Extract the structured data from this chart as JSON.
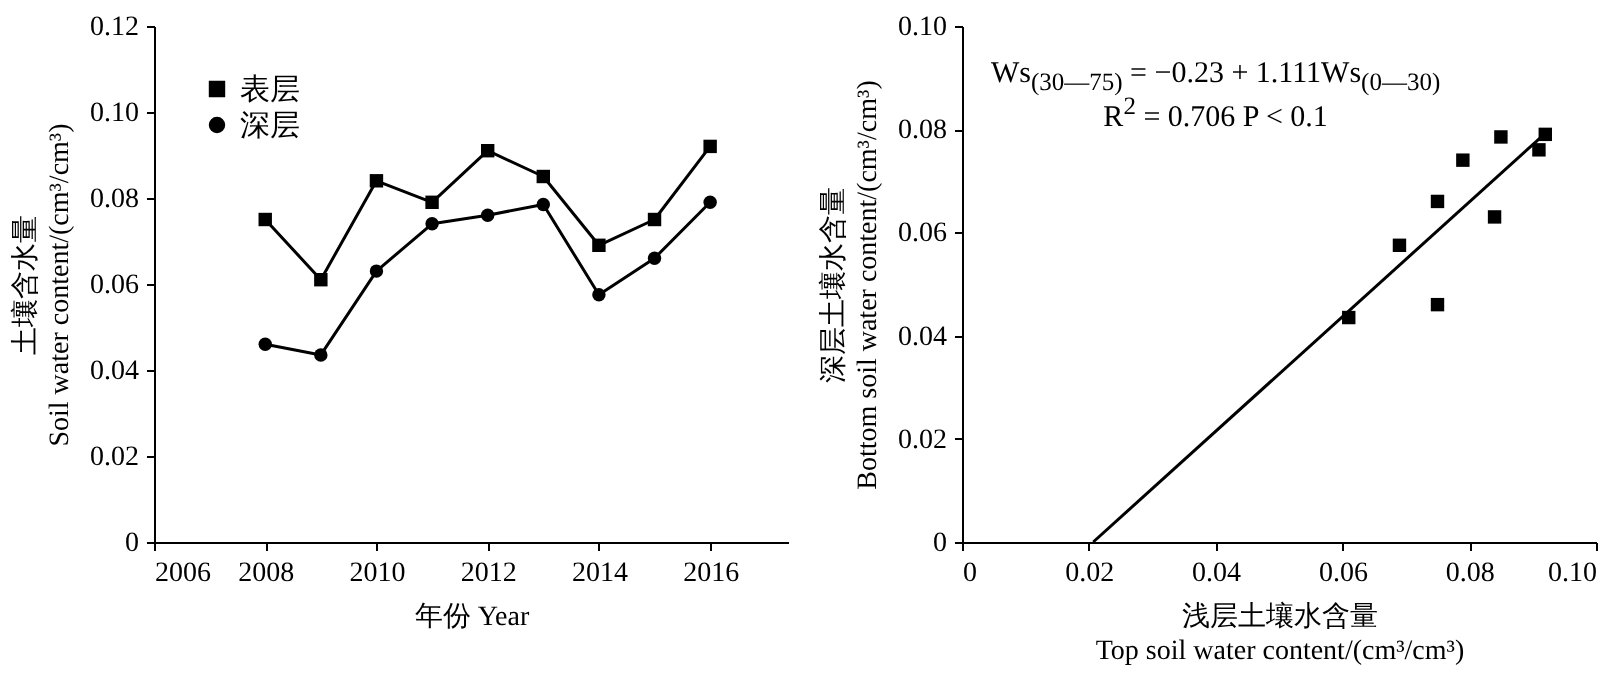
{
  "chart_data": [
    {
      "type": "line",
      "xlabel": "年份 Year",
      "ylabel": "土壤含水量\nSoil water content/(cm³/cm³)",
      "x": [
        2008,
        2009,
        2010,
        2011,
        2012,
        2013,
        2014,
        2015,
        2016
      ],
      "series": [
        {
          "name": "表层",
          "color": "#000000",
          "marker": "square",
          "values": [
            0.075,
            0.061,
            0.084,
            0.079,
            0.091,
            0.085,
            0.069,
            0.075,
            0.092
          ]
        },
        {
          "name": "深层",
          "color": "#000000",
          "marker": "circle",
          "values": [
            0.046,
            0.0435,
            0.063,
            0.074,
            0.076,
            0.0785,
            0.0575,
            0.066,
            0.079
          ]
        }
      ],
      "xlim": [
        2006,
        2017.4
      ],
      "xticks": [
        2006,
        2008,
        2010,
        2012,
        2014,
        2016
      ],
      "ylim": [
        0,
        0.12
      ],
      "yticks": [
        0,
        0.02,
        0.04,
        0.06,
        0.08,
        {
          "value": 0.1,
          "label": "0.10"
        },
        0.12
      ],
      "legend": "top left",
      "grid": false
    },
    {
      "type": "scatter",
      "xlabel": "浅层土壤水含量\nTop soil water content/(cm³/cm³)",
      "ylabel": "深层土壤水含量\nBottom soil water content/(cm³/cm³)",
      "annotations": [
        "Ws$_{(30—75)}$ = −0.23 + 1.111Ws$_{(0—30)}$",
        "R$^{2}$ = 0.706    P < 0.1"
      ],
      "series": [
        {
          "color": "#000000",
          "marker": "square",
          "x": [
            0.075,
            0.061,
            0.084,
            0.079,
            0.091,
            0.085,
            0.069,
            0.075,
            0.092
          ],
          "values": [
            0.046,
            0.0435,
            0.063,
            0.074,
            0.076,
            0.0785,
            0.0575,
            0.066,
            0.079
          ]
        },
        {
          "type": "line",
          "color": "#000000",
          "marker": "none",
          "x": [
            0.0207,
            0.092
          ],
          "values": [
            0,
            0.0792
          ]
        }
      ],
      "xlim": [
        0,
        0.1
      ],
      "xticks": [
        0,
        0.02,
        0.04,
        0.06,
        0.08,
        {
          "value": 0.1,
          "label": "0.10"
        }
      ],
      "ylim": [
        0,
        0.1
      ],
      "yticks": [
        0,
        0.02,
        0.04,
        0.06,
        0.08,
        {
          "value": 0.1,
          "label": "0.10"
        }
      ],
      "grid": false
    }
  ]
}
